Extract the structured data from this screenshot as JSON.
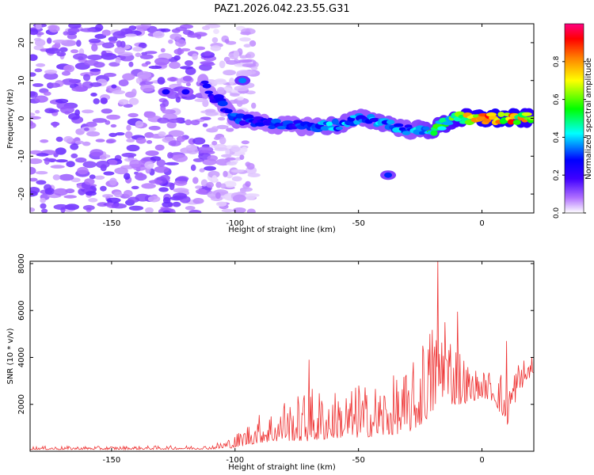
{
  "chart_data": [
    {
      "type": "heatmap",
      "title": "PAZ1.2026.042.23.55.G31",
      "xlabel": "Height of straight line (km)",
      "ylabel": "Frequency (Hz)",
      "xlim": [
        -183,
        21
      ],
      "ylim": [
        -25,
        25
      ],
      "xticks": [
        -150,
        -100,
        -50,
        0
      ],
      "yticks": [
        -20,
        -10,
        0,
        10,
        20
      ],
      "colorbar": {
        "label": "Normalized spectral amplitude",
        "range": [
          0,
          1
        ],
        "ticks": [
          0,
          0.2,
          0.4,
          0.6,
          0.8
        ],
        "colormap": [
          "#ffffff",
          "#8000ff",
          "#0000ff",
          "#00ffff",
          "#00ff00",
          "#ffff00",
          "#ff8000",
          "#ff0000",
          "#ff0080"
        ]
      },
      "features": {
        "noise_region_x": [
          -183,
          -100
        ],
        "noise_amplitude": 0.15,
        "track": {
          "x": [
            -113,
            -100,
            -90,
            -80,
            -70,
            -60,
            -50,
            -40,
            -30,
            -20,
            -10,
            0,
            10,
            21
          ],
          "frequency": [
            9,
            0,
            -1,
            -2,
            -2,
            -2,
            0,
            -1,
            -3,
            -3,
            0,
            0,
            0,
            0
          ],
          "amplitude": [
            0.25,
            0.35,
            0.3,
            0.35,
            0.35,
            0.45,
            0.4,
            0.45,
            0.4,
            0.55,
            0.7,
            0.95,
            0.95,
            0.8
          ]
        },
        "blobs": [
          {
            "x": -97,
            "frequency": 10,
            "amplitude": 0.35
          },
          {
            "x": -38,
            "frequency": -15,
            "amplitude": 0.3
          },
          {
            "x": -128,
            "frequency": 7,
            "amplitude": 0.25
          },
          {
            "x": -120,
            "frequency": 7,
            "amplitude": 0.25
          }
        ]
      }
    },
    {
      "type": "line",
      "xlabel": "Height of straight line (km)",
      "ylabel": "SNR (10 * v/v)",
      "xlim": [
        -183,
        21
      ],
      "ylim": [
        0,
        8100
      ],
      "xticks": [
        -150,
        -100,
        -50,
        0
      ],
      "yticks": [
        2000,
        4000,
        6000,
        8000
      ],
      "color": "#ee3333",
      "envelope": {
        "x": [
          -183,
          -150,
          -110,
          -100,
          -95,
          -90,
          -80,
          -75,
          -70,
          -60,
          -50,
          -40,
          -30,
          -25,
          -20,
          -18,
          -15,
          -10,
          -5,
          0,
          5,
          10,
          15,
          21
        ],
        "base": [
          100,
          100,
          120,
          250,
          450,
          600,
          750,
          800,
          850,
          950,
          1000,
          1100,
          1300,
          1700,
          2400,
          3000,
          2800,
          2500,
          2400,
          2500,
          2400,
          1500,
          2800,
          3500
        ],
        "amp": [
          90,
          90,
          100,
          350,
          600,
          800,
          1000,
          1200,
          1500,
          1300,
          1400,
          1500,
          1700,
          2000,
          2600,
          3000,
          2400,
          1800,
          1000,
          700,
          900,
          1500,
          900,
          500
        ]
      },
      "peaks": [
        {
          "x": -80,
          "y": 2050
        },
        {
          "x": -70,
          "y": 3900
        },
        {
          "x": -50,
          "y": 2800
        },
        {
          "x": -24,
          "y": 4500
        },
        {
          "x": -18,
          "y": 8150
        },
        {
          "x": -15,
          "y": 5500
        },
        {
          "x": -10,
          "y": 5950
        },
        {
          "x": 10,
          "y": 4700
        }
      ]
    }
  ]
}
